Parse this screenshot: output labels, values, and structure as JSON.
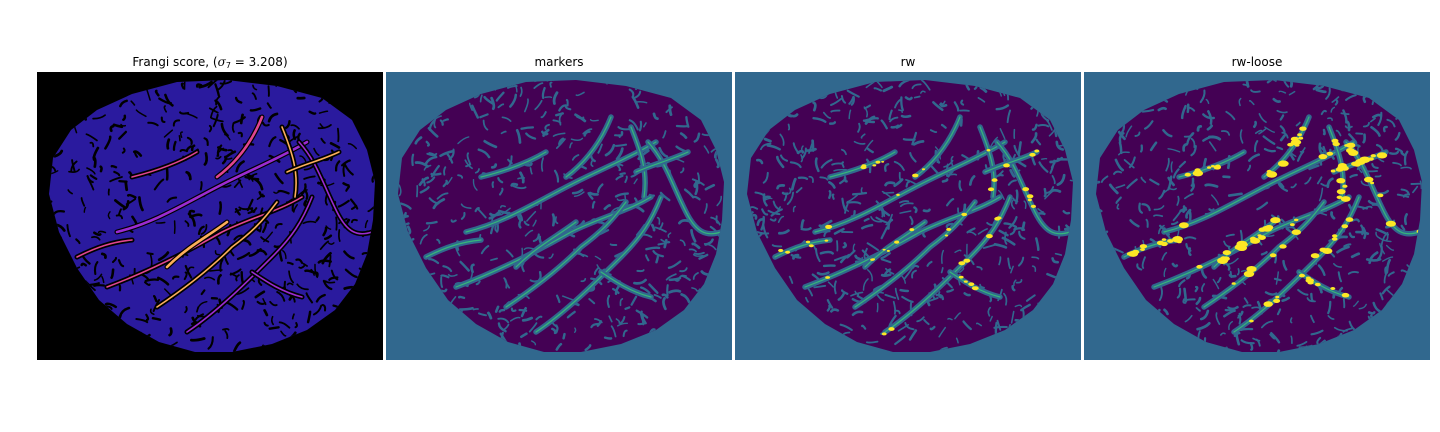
{
  "panels": [
    {
      "title_prefix": "Frangi score, (",
      "title_symbol": "σ",
      "title_subscript": "7",
      "title_value": " = 3.208)",
      "style": "frangi",
      "background": "#000000",
      "fill": "#2a1a9e",
      "vessel_colors": [
        "#9b2bd1",
        "#e0458f",
        "#fcae5a"
      ]
    },
    {
      "title": "markers",
      "style": "markers",
      "background": "#31688e",
      "fill": "#440154",
      "vessel_colors": [
        "#31688e",
        "#35b779"
      ]
    },
    {
      "title": "rw",
      "style": "rw",
      "background": "#31688e",
      "fill": "#440154",
      "vessel_colors": [
        "#31688e",
        "#35b779",
        "#fde725"
      ]
    },
    {
      "title": "rw-loose",
      "style": "rwloose",
      "background": "#31688e",
      "fill": "#440154",
      "vessel_colors": [
        "#31688e",
        "#35b779",
        "#fde725"
      ]
    }
  ]
}
